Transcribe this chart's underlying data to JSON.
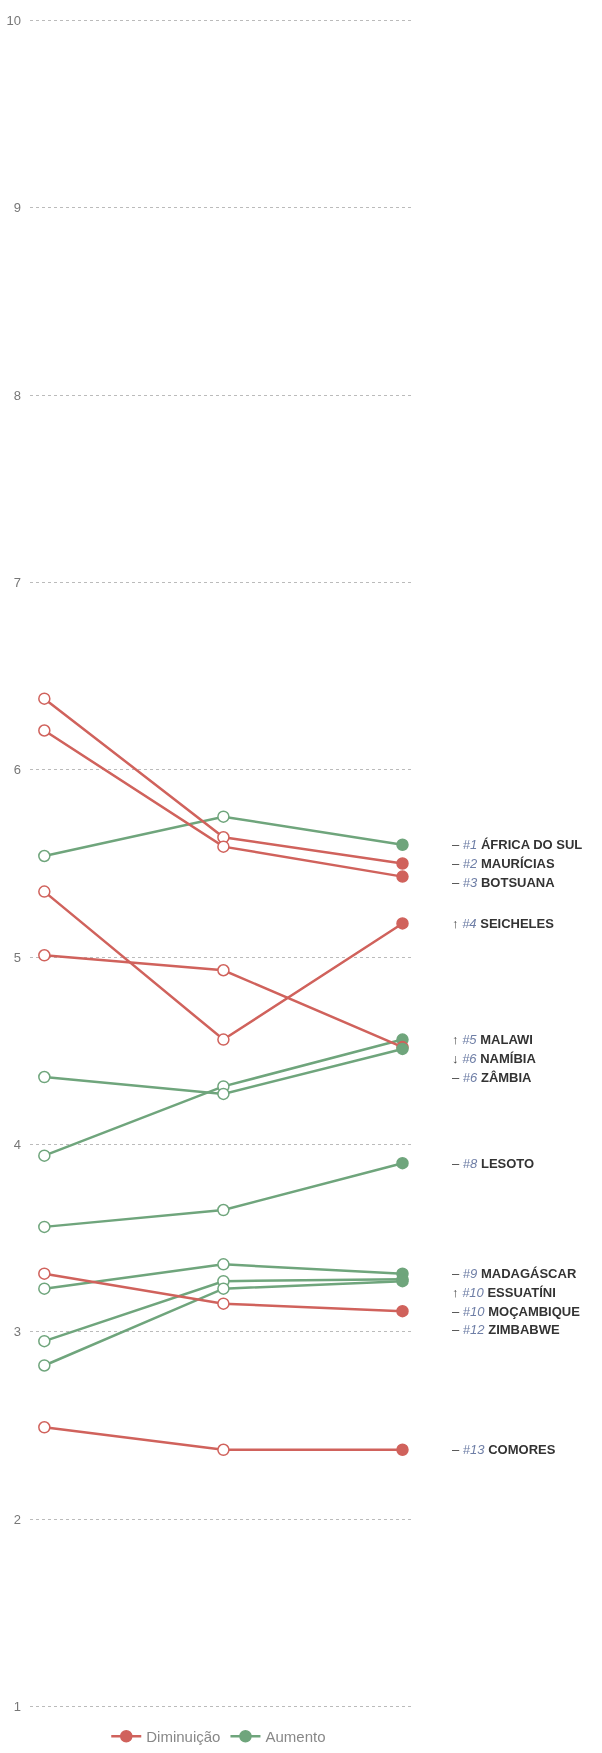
{
  "chart_data": {
    "type": "line",
    "categories": [
      null,
      null,
      null
    ],
    "ylim": [
      0.97,
      10.03
    ],
    "yticks": [
      1,
      2,
      3,
      4,
      5,
      6,
      7,
      8,
      9,
      10
    ],
    "grid": "y",
    "marker": "circle",
    "legend": "bottom",
    "tick_labels": "y",
    "series": [
      {
        "name": "– #1 ÁFRICA DO SUL",
        "color": "#6fa57c",
        "values": [
          5.54,
          5.75,
          5.6
        ]
      },
      {
        "name": "– #2 MAURÍCIAS",
        "color": "#d0625c",
        "values": [
          6.38,
          5.64,
          5.5
        ]
      },
      {
        "name": "– #3 BOTSUANA",
        "color": "#d0625c",
        "values": [
          6.21,
          5.59,
          5.43
        ]
      },
      {
        "name": "↑ #4 SEICHELES",
        "color": "#d0625c",
        "values": [
          5.35,
          4.56,
          5.18
        ]
      },
      {
        "name": "↑ #5 MALAWI",
        "color": "#6fa57c",
        "values": [
          3.94,
          4.31,
          4.56
        ]
      },
      {
        "name": "↓ #6 NAMÍBIA",
        "color": "#d0625c",
        "values": [
          5.01,
          4.93,
          4.52
        ]
      },
      {
        "name": "– #6 ZÂMBIA",
        "color": "#6fa57c",
        "values": [
          4.36,
          4.27,
          4.51
        ]
      },
      {
        "name": "– #8 LESOTO",
        "color": "#6fa57c",
        "values": [
          3.56,
          3.65,
          3.9
        ]
      },
      {
        "name": "– #9 MADAGÁSCAR",
        "color": "#6fa57c",
        "values": [
          3.23,
          3.36,
          3.31
        ]
      },
      {
        "name": "↑ #10 ESSUATÍNI",
        "color": "#6fa57c",
        "values": [
          2.95,
          3.27,
          3.28
        ]
      },
      {
        "name": "– #10 MOÇAMBIQUE",
        "color": "#6fa57c",
        "values": [
          2.82,
          3.23,
          3.27
        ]
      },
      {
        "name": "– #12 ZIMBABWE",
        "color": "#d0625c",
        "values": [
          3.31,
          3.15,
          3.11
        ]
      },
      {
        "name": "– #13 COMORES",
        "color": "#d0625c",
        "values": [
          2.49,
          2.37,
          2.37
        ]
      },
      {
        "name": "Diminuição",
        "color": "#d0625c",
        "values": [
          null,
          null,
          null
        ]
      },
      {
        "name": "Aumento",
        "color": "#6fa57c",
        "values": [
          null,
          null,
          null
        ]
      }
    ]
  }
}
